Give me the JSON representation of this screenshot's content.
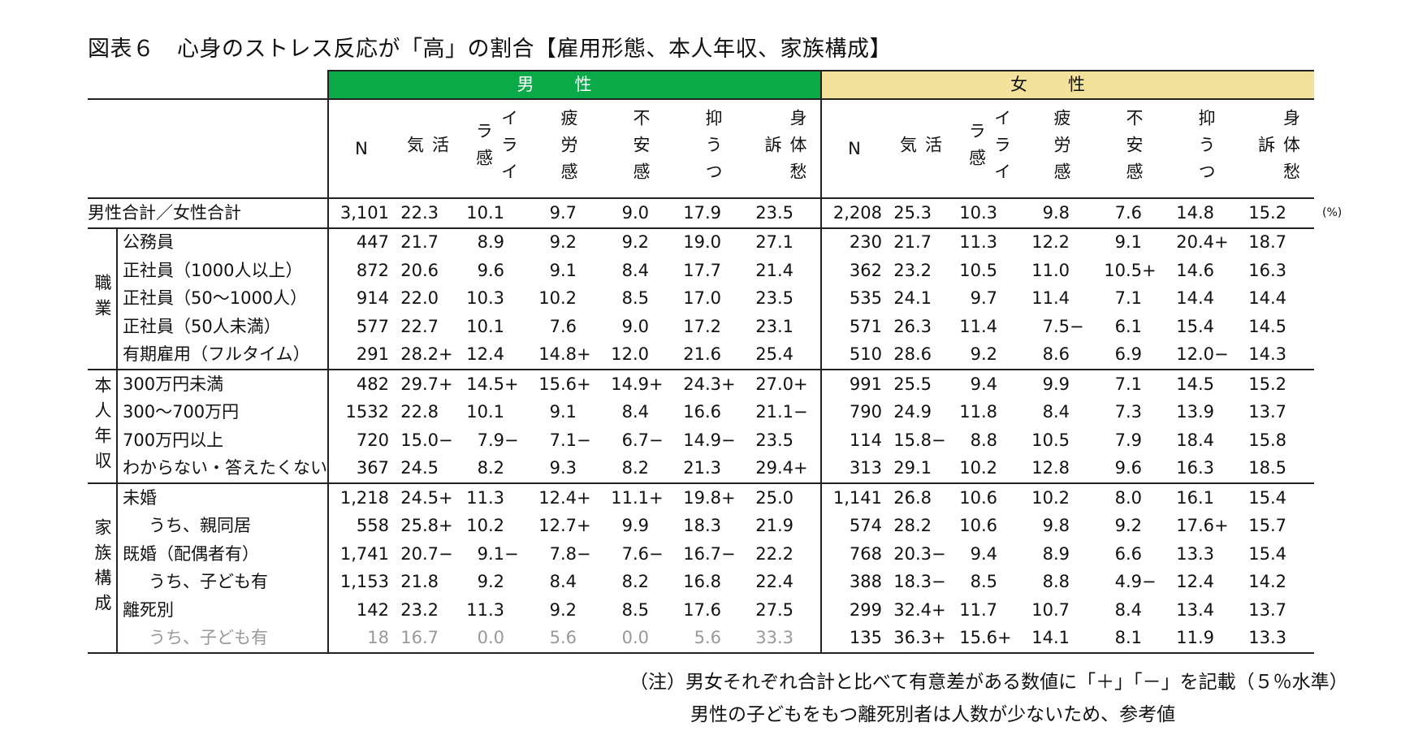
{
  "title": "図表６　心身のストレス反応が「高」の割合【雇用形態、本人年収、家族構成】",
  "header": {
    "male": "男性",
    "female": "女性",
    "columns": [
      "N",
      "活気",
      "イライラ感",
      "疲労感",
      "不安感",
      "抑うつ",
      "身体愁訴"
    ],
    "column_lines": [
      [
        "N"
      ],
      [
        "活",
        "気"
      ],
      [
        "イライ",
        "ラ感"
      ],
      [
        "疲労感"
      ],
      [
        "不安感"
      ],
      [
        "抑うつ"
      ],
      [
        "身体愁",
        "訴"
      ]
    ]
  },
  "unit": "(%)",
  "total": {
    "label": "男性合計／女性合計",
    "male": [
      "3,101",
      "22.3",
      "10.1",
      "9.7",
      "9.0",
      "17.9",
      "23.5"
    ],
    "female": [
      "2,208",
      "25.3",
      "10.3",
      "9.8",
      "7.6",
      "14.8",
      "15.2"
    ]
  },
  "groups": [
    {
      "name": "職業",
      "rows": [
        {
          "label": "公務員",
          "male": [
            "447",
            "21.7",
            "8.9",
            "9.2",
            "9.2",
            "19.0",
            "27.1"
          ],
          "female": [
            "230",
            "21.7",
            "11.3",
            "12.2",
            "9.1",
            "20.4+",
            "18.7"
          ]
        },
        {
          "label": "正社員（1000人以上）",
          "male": [
            "872",
            "20.6",
            "9.6",
            "9.1",
            "8.4",
            "17.7",
            "21.4"
          ],
          "female": [
            "362",
            "23.2",
            "10.5",
            "11.0",
            "10.5+",
            "14.6",
            "16.3"
          ]
        },
        {
          "label": "正社員（50～1000人）",
          "male": [
            "914",
            "22.0",
            "10.3",
            "10.2",
            "8.5",
            "17.0",
            "23.5"
          ],
          "female": [
            "535",
            "24.1",
            "9.7",
            "11.4",
            "7.1",
            "14.4",
            "14.4"
          ]
        },
        {
          "label": "正社員（50人未満）",
          "male": [
            "577",
            "22.7",
            "10.1",
            "7.6",
            "9.0",
            "17.2",
            "23.1"
          ],
          "female": [
            "571",
            "26.3",
            "11.4",
            "7.5−",
            "6.1",
            "15.4",
            "14.5"
          ]
        },
        {
          "label": "有期雇用（フルタイム）",
          "male": [
            "291",
            "28.2+",
            "12.4",
            "14.8+",
            "12.0",
            "21.6",
            "25.4"
          ],
          "female": [
            "510",
            "28.6",
            "9.2",
            "8.6",
            "6.9",
            "12.0−",
            "14.3"
          ]
        }
      ]
    },
    {
      "name": "本人年収",
      "rows": [
        {
          "label": "300万円未満",
          "male": [
            "482",
            "29.7+",
            "14.5+",
            "15.6+",
            "14.9+",
            "24.3+",
            "27.0+"
          ],
          "female": [
            "991",
            "25.5",
            "9.4",
            "9.9",
            "7.1",
            "14.5",
            "15.2"
          ]
        },
        {
          "label": "300～700万円",
          "male": [
            "1532",
            "22.8",
            "10.1",
            "9.1",
            "8.4",
            "16.6",
            "21.1−"
          ],
          "female": [
            "790",
            "24.9",
            "11.8",
            "8.4",
            "7.3",
            "13.9",
            "13.7"
          ]
        },
        {
          "label": "700万円以上",
          "male": [
            "720",
            "15.0−",
            "7.9−",
            "7.1−",
            "6.7−",
            "14.9−",
            "23.5"
          ],
          "female": [
            "114",
            "15.8−",
            "8.8",
            "10.5",
            "7.9",
            "18.4",
            "15.8"
          ]
        },
        {
          "label": "わからない・答えたくない",
          "male": [
            "367",
            "24.5",
            "8.2",
            "9.3",
            "8.2",
            "21.3",
            "29.4+"
          ],
          "female": [
            "313",
            "29.1",
            "10.2",
            "12.8",
            "9.6",
            "16.3",
            "18.5"
          ]
        }
      ]
    },
    {
      "name": "家族構成",
      "rows": [
        {
          "label": "未婚",
          "male": [
            "1,218",
            "24.5+",
            "11.3",
            "12.4+",
            "11.1+",
            "19.8+",
            "25.0"
          ],
          "female": [
            "1,141",
            "26.8",
            "10.6",
            "10.2",
            "8.0",
            "16.1",
            "15.4"
          ]
        },
        {
          "label": "うち、親同居",
          "male": [
            "558",
            "25.8+",
            "10.2",
            "12.7+",
            "9.9",
            "18.3",
            "21.9"
          ],
          "female": [
            "574",
            "28.2",
            "10.6",
            "9.8",
            "9.2",
            "17.6+",
            "15.7"
          ]
        },
        {
          "label": "既婚（配偶者有）",
          "male": [
            "1,741",
            "20.7−",
            "9.1−",
            "7.8−",
            "7.6−",
            "16.7−",
            "22.2"
          ],
          "female": [
            "768",
            "20.3−",
            "9.4",
            "8.9",
            "6.6",
            "13.3",
            "15.4"
          ]
        },
        {
          "label": "うち、子ども有",
          "male": [
            "1,153",
            "21.8",
            "9.2",
            "8.4",
            "8.2",
            "16.8",
            "22.4"
          ],
          "female": [
            "388",
            "18.3−",
            "8.5",
            "8.8",
            "4.9−",
            "12.4",
            "14.2"
          ]
        },
        {
          "label": "離死別",
          "male": [
            "142",
            "23.2",
            "11.3",
            "9.2",
            "8.5",
            "17.6",
            "27.5"
          ],
          "female": [
            "299",
            "32.4+",
            "11.7",
            "10.7",
            "8.4",
            "13.4",
            "13.7"
          ]
        },
        {
          "label": "うち、子ども有",
          "male": [
            "18",
            "16.7",
            "0.0",
            "5.6",
            "0.0",
            "5.6",
            "33.3"
          ],
          "female": [
            "135",
            "36.3+",
            "15.6+",
            "14.1",
            "8.1",
            "11.9",
            "13.3"
          ]
        }
      ]
    }
  ],
  "notes": [
    "（注）男女それぞれ合計と比べて有意差がある数値に「＋」「－」を記載（５％水準）",
    "男性の子どもをもつ離死別者は人数が少ないため、参考値"
  ]
}
